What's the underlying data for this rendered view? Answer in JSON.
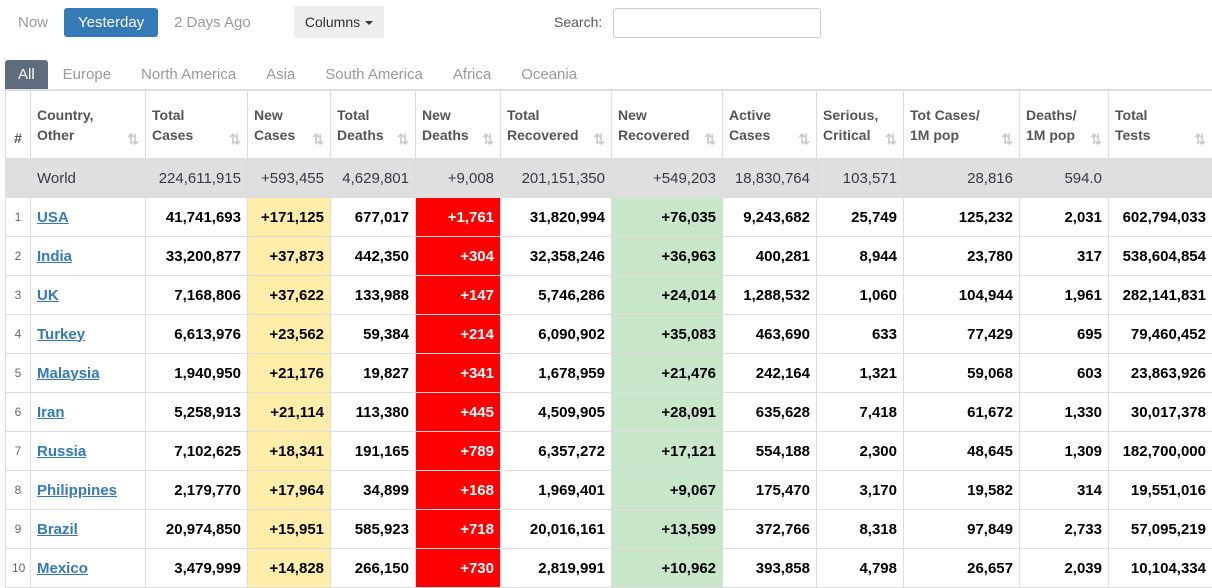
{
  "toolbar": {
    "tabs": [
      "Now",
      "Yesterday",
      "2 Days Ago"
    ],
    "columns_button": "Columns",
    "search_label": "Search:"
  },
  "regions": [
    "All",
    "Europe",
    "North America",
    "Asia",
    "South America",
    "Africa",
    "Oceania"
  ],
  "table": {
    "headers": [
      [
        "#"
      ],
      [
        "Country,",
        "Other"
      ],
      [
        "Total",
        "Cases"
      ],
      [
        "New",
        "Cases"
      ],
      [
        "Total",
        "Deaths"
      ],
      [
        "New",
        "Deaths"
      ],
      [
        "Total",
        "Recovered"
      ],
      [
        "New",
        "Recovered"
      ],
      [
        "Active",
        "Cases"
      ],
      [
        "Serious,",
        "Critical"
      ],
      [
        "Tot Cases/",
        "1M pop"
      ],
      [
        "Deaths/",
        "1M pop"
      ],
      [
        "Total",
        "Tests"
      ]
    ],
    "world": [
      "World",
      "224,611,915",
      "+593,455",
      "4,629,801",
      "+9,008",
      "201,151,350",
      "+549,203",
      "18,830,764",
      "103,571",
      "28,816",
      "594.0"
    ],
    "rows": [
      [
        "1",
        "USA",
        "41,741,693",
        "+171,125",
        "677,017",
        "+1,761",
        "31,820,994",
        "+76,035",
        "9,243,682",
        "25,749",
        "125,232",
        "2,031",
        "602,794,033"
      ],
      [
        "2",
        "India",
        "33,200,877",
        "+37,873",
        "442,350",
        "+304",
        "32,358,246",
        "+36,963",
        "400,281",
        "8,944",
        "23,780",
        "317",
        "538,604,854"
      ],
      [
        "3",
        "UK",
        "7,168,806",
        "+37,622",
        "133,988",
        "+147",
        "5,746,286",
        "+24,014",
        "1,288,532",
        "1,060",
        "104,944",
        "1,961",
        "282,141,831"
      ],
      [
        "4",
        "Turkey",
        "6,613,976",
        "+23,562",
        "59,384",
        "+214",
        "6,090,902",
        "+35,083",
        "463,690",
        "633",
        "77,429",
        "695",
        "79,460,452"
      ],
      [
        "5",
        "Malaysia",
        "1,940,950",
        "+21,176",
        "19,827",
        "+341",
        "1,678,959",
        "+21,476",
        "242,164",
        "1,321",
        "59,068",
        "603",
        "23,863,926"
      ],
      [
        "6",
        "Iran",
        "5,258,913",
        "+21,114",
        "113,380",
        "+445",
        "4,509,905",
        "+28,091",
        "635,628",
        "7,418",
        "61,672",
        "1,330",
        "30,017,378"
      ],
      [
        "7",
        "Russia",
        "7,102,625",
        "+18,341",
        "191,165",
        "+789",
        "6,357,272",
        "+17,121",
        "554,188",
        "2,300",
        "48,645",
        "1,309",
        "182,700,000"
      ],
      [
        "8",
        "Philippines",
        "2,179,770",
        "+17,964",
        "34,899",
        "+168",
        "1,969,401",
        "+9,067",
        "175,470",
        "3,170",
        "19,582",
        "314",
        "19,551,016"
      ],
      [
        "9",
        "Brazil",
        "20,974,850",
        "+15,951",
        "585,923",
        "+718",
        "20,016,161",
        "+13,599",
        "372,766",
        "8,318",
        "97,849",
        "2,733",
        "57,095,219"
      ],
      [
        "10",
        "Mexico",
        "3,479,999",
        "+14,828",
        "266,150",
        "+730",
        "2,819,991",
        "+10,962",
        "393,858",
        "4,798",
        "26,657",
        "2,039",
        "10,104,334"
      ]
    ]
  }
}
